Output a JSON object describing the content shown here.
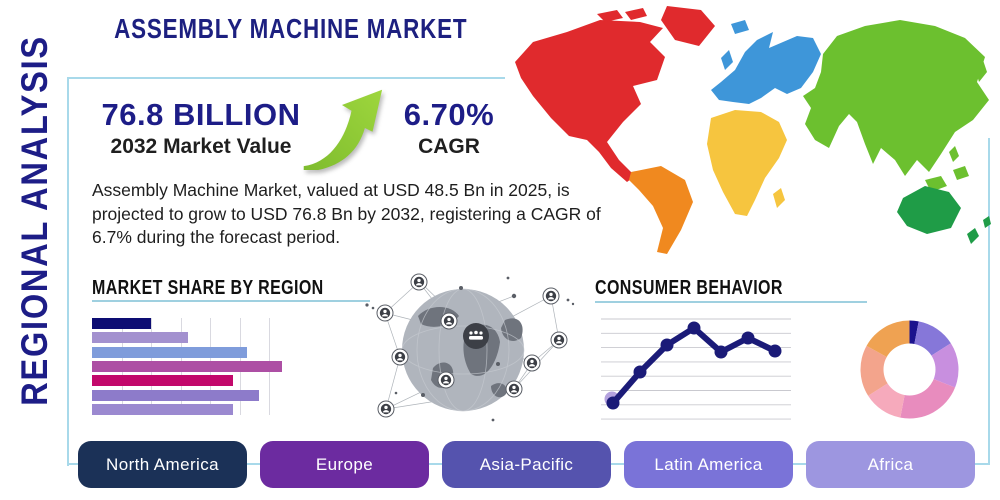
{
  "title": "ASSEMBLY MACHINE MARKET",
  "sidebar_label": "REGIONAL ANALYSIS",
  "stats": {
    "market_value": "76.8 BILLION",
    "market_value_caption": "2032 Market Value",
    "cagr_value": "6.70%",
    "cagr_caption": "CAGR"
  },
  "description": "Assembly Machine Market, valued at USD 48.5 Bn in 2025, is projected to grow to USD 76.8 Bn by 2032, registering a CAGR of 6.7% during the forecast period.",
  "sections": {
    "market_share_title": "MARKET SHARE BY REGION",
    "consumer_behavior_title": "CONSUMER BEHAVIOR"
  },
  "regions": [
    {
      "label": "North America",
      "color": "#1b3157"
    },
    {
      "label": "Europe",
      "color": "#6c2ba0"
    },
    {
      "label": "Asia-Pacific",
      "color": "#5553ae"
    },
    {
      "label": "Latin America",
      "color": "#7a73d8"
    },
    {
      "label": "Africa",
      "color": "#9d96e0"
    }
  ],
  "map": {
    "continents": [
      {
        "key": "north_america",
        "color": "#e02a2d"
      },
      {
        "key": "greenland",
        "color": "#e02a2d"
      },
      {
        "key": "south_america",
        "color": "#f0891f"
      },
      {
        "key": "europe",
        "color": "#3e96d9"
      },
      {
        "key": "africa",
        "color": "#f6c53f"
      },
      {
        "key": "asia",
        "color": "#6cc02f"
      },
      {
        "key": "australia",
        "color": "#1f9c47"
      }
    ]
  },
  "colors": {
    "accent_border": "#a8d9ea",
    "navy_text": "#1d1d87",
    "arrow_green_light": "#9ed63d",
    "arrow_green_dark": "#6fb32a"
  },
  "chart_data": [
    {
      "type": "bar",
      "title": "MARKET SHARE BY REGION",
      "orientation": "horizontal",
      "note": "bars unlabeled in image; values are % of axis max estimated from pixels",
      "values": [
        30,
        49,
        79,
        97,
        72,
        85,
        72
      ],
      "colors": [
        "#0d0d73",
        "#a391cf",
        "#7f9cdb",
        "#ad4fa4",
        "#c2086b",
        "#8d7bca",
        "#9b89d0"
      ],
      "grid": "vertical, 6 lines"
    },
    {
      "type": "line",
      "title": "CONSUMER BEHAVIOR",
      "note": "axes unlabeled in image; y values on 0-100 relative scale",
      "x": [
        1,
        2,
        3,
        4,
        5,
        6,
        7
      ],
      "values": [
        16,
        47,
        74,
        91,
        67,
        81,
        68
      ],
      "line_color": "#1b1b78",
      "first_point_halo_color": "#b4a2de",
      "grid": "horizontal, 8 lines"
    },
    {
      "type": "pie",
      "subtype": "donut",
      "note": "slices unlabeled in image; percents estimated from angles, clockwise from top",
      "values_pct": [
        3,
        13,
        15,
        22,
        13,
        17,
        17
      ],
      "colors": [
        "#1b128e",
        "#8677d9",
        "#c88fdf",
        "#e88cbe",
        "#f6aabc",
        "#f3a48c",
        "#efa252"
      ]
    }
  ]
}
